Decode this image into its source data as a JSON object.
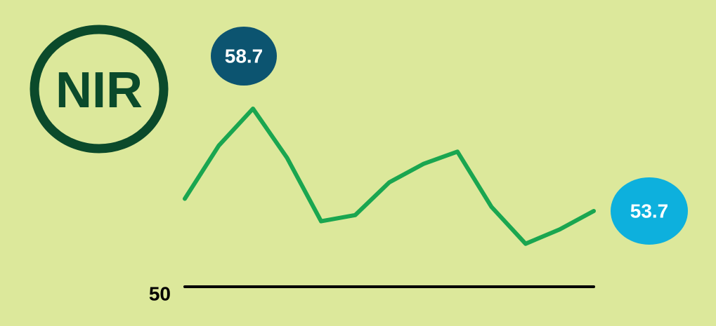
{
  "logo": "NIR",
  "chart_data": {
    "type": "line",
    "categories": [
      null,
      null,
      null,
      null,
      null,
      null,
      null,
      null,
      null,
      null,
      null,
      null,
      null
    ],
    "values": [
      54.3,
      56.9,
      58.7,
      56.3,
      53.2,
      53.5,
      55.1,
      56.0,
      56.6,
      53.9,
      52.1,
      52.8,
      53.7
    ],
    "color": "#1aa650",
    "ylim": [
      50,
      58.7
    ],
    "reference_line": 50,
    "reference_color": "#000000",
    "highlight_colors": {
      "max": "#0c5470",
      "last": "#0db0dd"
    }
  }
}
